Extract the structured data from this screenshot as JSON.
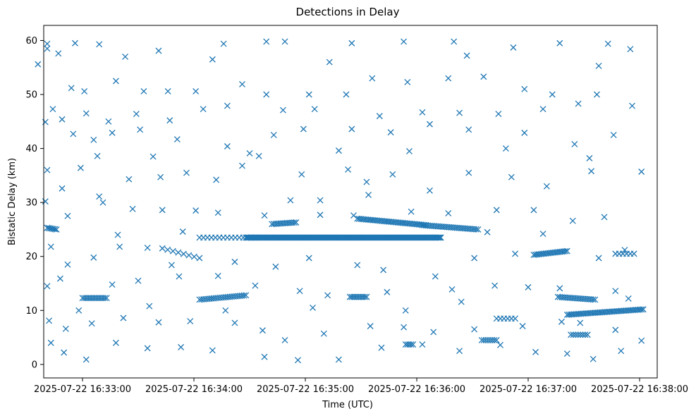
{
  "chart_data": {
    "type": "scatter",
    "title": "Detections in Delay",
    "xlabel": "Time (UTC)",
    "ylabel": "Bistatic Delay (km)",
    "marker": "x",
    "color": "#1f77b4",
    "grid": false,
    "legend": "none",
    "x_unit": "seconds",
    "x_epoch": "2025-07-22 16:32:38",
    "xlim": [
      0,
      320
    ],
    "ylim": [
      -2.5,
      62.8
    ],
    "x_ticks": [
      {
        "value": 22,
        "label": "2025-07-22 16:33:00"
      },
      {
        "value": 82,
        "label": "2025-07-22 16:34:00"
      },
      {
        "value": 142,
        "label": "2025-07-22 16:35:00"
      },
      {
        "value": 202,
        "label": "2025-07-22 16:36:00"
      },
      {
        "value": 262,
        "label": "2025-07-22 16:37:00"
      },
      {
        "value": 322,
        "label": "2025-07-22 16:38:00"
      }
    ],
    "y_ticks": [
      {
        "value": 0,
        "label": "0"
      },
      {
        "value": 10,
        "label": "10"
      },
      {
        "value": 20,
        "label": "20"
      },
      {
        "value": 30,
        "label": "30"
      },
      {
        "value": 40,
        "label": "40"
      },
      {
        "value": 50,
        "label": "50"
      },
      {
        "value": 60,
        "label": "60"
      }
    ],
    "tracks": [
      {
        "x_start": 22,
        "x_end": 35,
        "y_start": 12.3,
        "y_end": 12.3,
        "n": 14
      },
      {
        "x_start": 3,
        "x_end": 8,
        "y_start": 25.3,
        "y_end": 25.0,
        "n": 7
      },
      {
        "x_start": 65,
        "x_end": 85,
        "y_start": 21.5,
        "y_end": 19.7,
        "n": 8
      },
      {
        "x_start": 85,
        "x_end": 115,
        "y_start": 23.5,
        "y_end": 23.5,
        "n": 15
      },
      {
        "x_start": 85,
        "x_end": 110,
        "y_start": 12.0,
        "y_end": 12.8,
        "n": 24
      },
      {
        "x_start": 110,
        "x_end": 215,
        "y_start": 23.5,
        "y_end": 23.5,
        "n": 180
      },
      {
        "x_start": 124,
        "x_end": 137,
        "y_start": 26.0,
        "y_end": 26.3,
        "n": 14
      },
      {
        "x_start": 170,
        "x_end": 207,
        "y_start": 27.0,
        "y_end": 25.8,
        "n": 40
      },
      {
        "x_start": 205,
        "x_end": 235,
        "y_start": 25.8,
        "y_end": 25.0,
        "n": 30
      },
      {
        "x_start": 166,
        "x_end": 175,
        "y_start": 12.5,
        "y_end": 12.5,
        "n": 10
      },
      {
        "x_start": 196,
        "x_end": 200,
        "y_start": 3.7,
        "y_end": 3.7,
        "n": 5
      },
      {
        "x_start": 237,
        "x_end": 245,
        "y_start": 4.5,
        "y_end": 4.5,
        "n": 8
      },
      {
        "x_start": 245,
        "x_end": 255,
        "y_start": 8.5,
        "y_end": 8.5,
        "n": 6
      },
      {
        "x_start": 265,
        "x_end": 283,
        "y_start": 20.3,
        "y_end": 21.0,
        "n": 20
      },
      {
        "x_start": 278,
        "x_end": 298,
        "y_start": 12.5,
        "y_end": 12.0,
        "n": 20
      },
      {
        "x_start": 283,
        "x_end": 324,
        "y_start": 9.2,
        "y_end": 10.2,
        "n": 45
      },
      {
        "x_start": 285,
        "x_end": 294,
        "y_start": 5.5,
        "y_end": 5.5,
        "n": 8
      },
      {
        "x_start": 309,
        "x_end": 319,
        "y_start": 20.5,
        "y_end": 20.5,
        "n": 6
      }
    ],
    "scatter_points": [
      [
        -2,
        55.6
      ],
      [
        3,
        59.4
      ],
      [
        3,
        58.5
      ],
      [
        18,
        59.5
      ],
      [
        31,
        59.3
      ],
      [
        63,
        58.1
      ],
      [
        98,
        59.4
      ],
      [
        121,
        59.8
      ],
      [
        131,
        59.8
      ],
      [
        167,
        59.5
      ],
      [
        195,
        59.8
      ],
      [
        222,
        59.8
      ],
      [
        254,
        58.7
      ],
      [
        279,
        59.5
      ],
      [
        305,
        59.4
      ],
      [
        317,
        58.4
      ],
      [
        16,
        51.2
      ],
      [
        23,
        50.6
      ],
      [
        40,
        52.5
      ],
      [
        55,
        50.6
      ],
      [
        68,
        50.6
      ],
      [
        83,
        50.6
      ],
      [
        108,
        51.9
      ],
      [
        121,
        50.0
      ],
      [
        144,
        50.0
      ],
      [
        164,
        50.0
      ],
      [
        178,
        53.0
      ],
      [
        197,
        52.3
      ],
      [
        219,
        53.0
      ],
      [
        238,
        53.3
      ],
      [
        260,
        51.0
      ],
      [
        275,
        50.0
      ],
      [
        299,
        50.0
      ],
      [
        318,
        47.9
      ],
      [
        6,
        47.3
      ],
      [
        11,
        45.4
      ],
      [
        24,
        46.5
      ],
      [
        36,
        45.0
      ],
      [
        51,
        46.4
      ],
      [
        69,
        45.2
      ],
      [
        87,
        47.3
      ],
      [
        100,
        47.9
      ],
      [
        130,
        47.1
      ],
      [
        147,
        47.3
      ],
      [
        182,
        46.0
      ],
      [
        205,
        46.7
      ],
      [
        225,
        46.6
      ],
      [
        246,
        46.4
      ],
      [
        270,
        47.3
      ],
      [
        289,
        48.3
      ],
      [
        2,
        44.9
      ],
      [
        17,
        42.7
      ],
      [
        28,
        41.6
      ],
      [
        38,
        42.9
      ],
      [
        53,
        43.5
      ],
      [
        73,
        41.7
      ],
      [
        100,
        40.4
      ],
      [
        125,
        42.5
      ],
      [
        141,
        43.6
      ],
      [
        167,
        43.6
      ],
      [
        188,
        43.0
      ],
      [
        209,
        44.5
      ],
      [
        230,
        43.5
      ],
      [
        260,
        42.9
      ],
      [
        287,
        40.8
      ],
      [
        308,
        42.5
      ],
      [
        3,
        36.0
      ],
      [
        11,
        32.6
      ],
      [
        21,
        36.4
      ],
      [
        31,
        31.1
      ],
      [
        47,
        34.3
      ],
      [
        64,
        34.7
      ],
      [
        78,
        35.5
      ],
      [
        94,
        34.2
      ],
      [
        108,
        36.8
      ],
      [
        117,
        38.6
      ],
      [
        140,
        35.2
      ],
      [
        165,
        36.1
      ],
      [
        175,
        33.8
      ],
      [
        189,
        35.2
      ],
      [
        209,
        32.2
      ],
      [
        230,
        35.5
      ],
      [
        253,
        34.7
      ],
      [
        272,
        33.0
      ],
      [
        296,
        35.8
      ],
      [
        323,
        35.7
      ],
      [
        2,
        30.2
      ],
      [
        14,
        27.5
      ],
      [
        33,
        30.0
      ],
      [
        49,
        28.8
      ],
      [
        65,
        28.6
      ],
      [
        83,
        28.5
      ],
      [
        95,
        28.1
      ],
      [
        120,
        27.6
      ],
      [
        134,
        30.4
      ],
      [
        150,
        27.7
      ],
      [
        168,
        27.6
      ],
      [
        199,
        28.3
      ],
      [
        219,
        28.0
      ],
      [
        245,
        28.6
      ],
      [
        265,
        28.6
      ],
      [
        286,
        26.6
      ],
      [
        303,
        27.3
      ],
      [
        5,
        21.8
      ],
      [
        14,
        18.5
      ],
      [
        28,
        19.8
      ],
      [
        42,
        21.8
      ],
      [
        57,
        21.6
      ],
      [
        70,
        18.4
      ],
      [
        104,
        19.0
      ],
      [
        126,
        18.1
      ],
      [
        144,
        19.7
      ],
      [
        170,
        18.4
      ],
      [
        184,
        17.5
      ],
      [
        212,
        16.3
      ],
      [
        233,
        19.7
      ],
      [
        255,
        20.5
      ],
      [
        300,
        19.7
      ],
      [
        314,
        21.2
      ],
      [
        3,
        14.5
      ],
      [
        10,
        15.9
      ],
      [
        38,
        14.8
      ],
      [
        52,
        15.5
      ],
      [
        74,
        16.3
      ],
      [
        95,
        16.4
      ],
      [
        115,
        14.6
      ],
      [
        139,
        13.6
      ],
      [
        154,
        12.8
      ],
      [
        186,
        13.4
      ],
      [
        221,
        13.9
      ],
      [
        244,
        14.6
      ],
      [
        262,
        14.3
      ],
      [
        279,
        14.1
      ],
      [
        309,
        13.6
      ],
      [
        4,
        8.1
      ],
      [
        13,
        6.6
      ],
      [
        27,
        7.6
      ],
      [
        44,
        8.6
      ],
      [
        63,
        7.8
      ],
      [
        80,
        8.0
      ],
      [
        104,
        7.7
      ],
      [
        119,
        6.3
      ],
      [
        131,
        4.5
      ],
      [
        152,
        5.7
      ],
      [
        177,
        7.1
      ],
      [
        195,
        6.9
      ],
      [
        211,
        6.0
      ],
      [
        233,
        6.5
      ],
      [
        259,
        7.1
      ],
      [
        290,
        7.7
      ],
      [
        309,
        6.4
      ],
      [
        323,
        4.4
      ],
      [
        5,
        4.0
      ],
      [
        12,
        2.2
      ],
      [
        24,
        0.9
      ],
      [
        40,
        4.0
      ],
      [
        57,
        3.0
      ],
      [
        75,
        3.2
      ],
      [
        92,
        2.6
      ],
      [
        120,
        1.4
      ],
      [
        138,
        0.8
      ],
      [
        160,
        0.9
      ],
      [
        183,
        3.1
      ],
      [
        205,
        3.7
      ],
      [
        225,
        2.5
      ],
      [
        247,
        3.6
      ],
      [
        266,
        2.3
      ],
      [
        283,
        2.0
      ],
      [
        297,
        1.0
      ],
      [
        312,
        2.5
      ],
      [
        9,
        57.6
      ],
      [
        45,
        57.0
      ],
      [
        92,
        56.5
      ],
      [
        155,
        56.0
      ],
      [
        229,
        57.2
      ],
      [
        300,
        55.3
      ],
      [
        30,
        38.6
      ],
      [
        60,
        38.5
      ],
      [
        112,
        39.1
      ],
      [
        160,
        39.6
      ],
      [
        198,
        39.5
      ],
      [
        250,
        40.0
      ],
      [
        295,
        38.2
      ],
      [
        41,
        24.0
      ],
      [
        76,
        24.6
      ],
      [
        150,
        30.4
      ],
      [
        176,
        31.4
      ],
      [
        240,
        24.5
      ],
      [
        270,
        24.2
      ],
      [
        20,
        10.0
      ],
      [
        58,
        10.8
      ],
      [
        99,
        10.0
      ],
      [
        146,
        10.5
      ],
      [
        196,
        10.0
      ],
      [
        226,
        11.6
      ],
      [
        280,
        7.9
      ],
      [
        316,
        12.2
      ]
    ]
  }
}
